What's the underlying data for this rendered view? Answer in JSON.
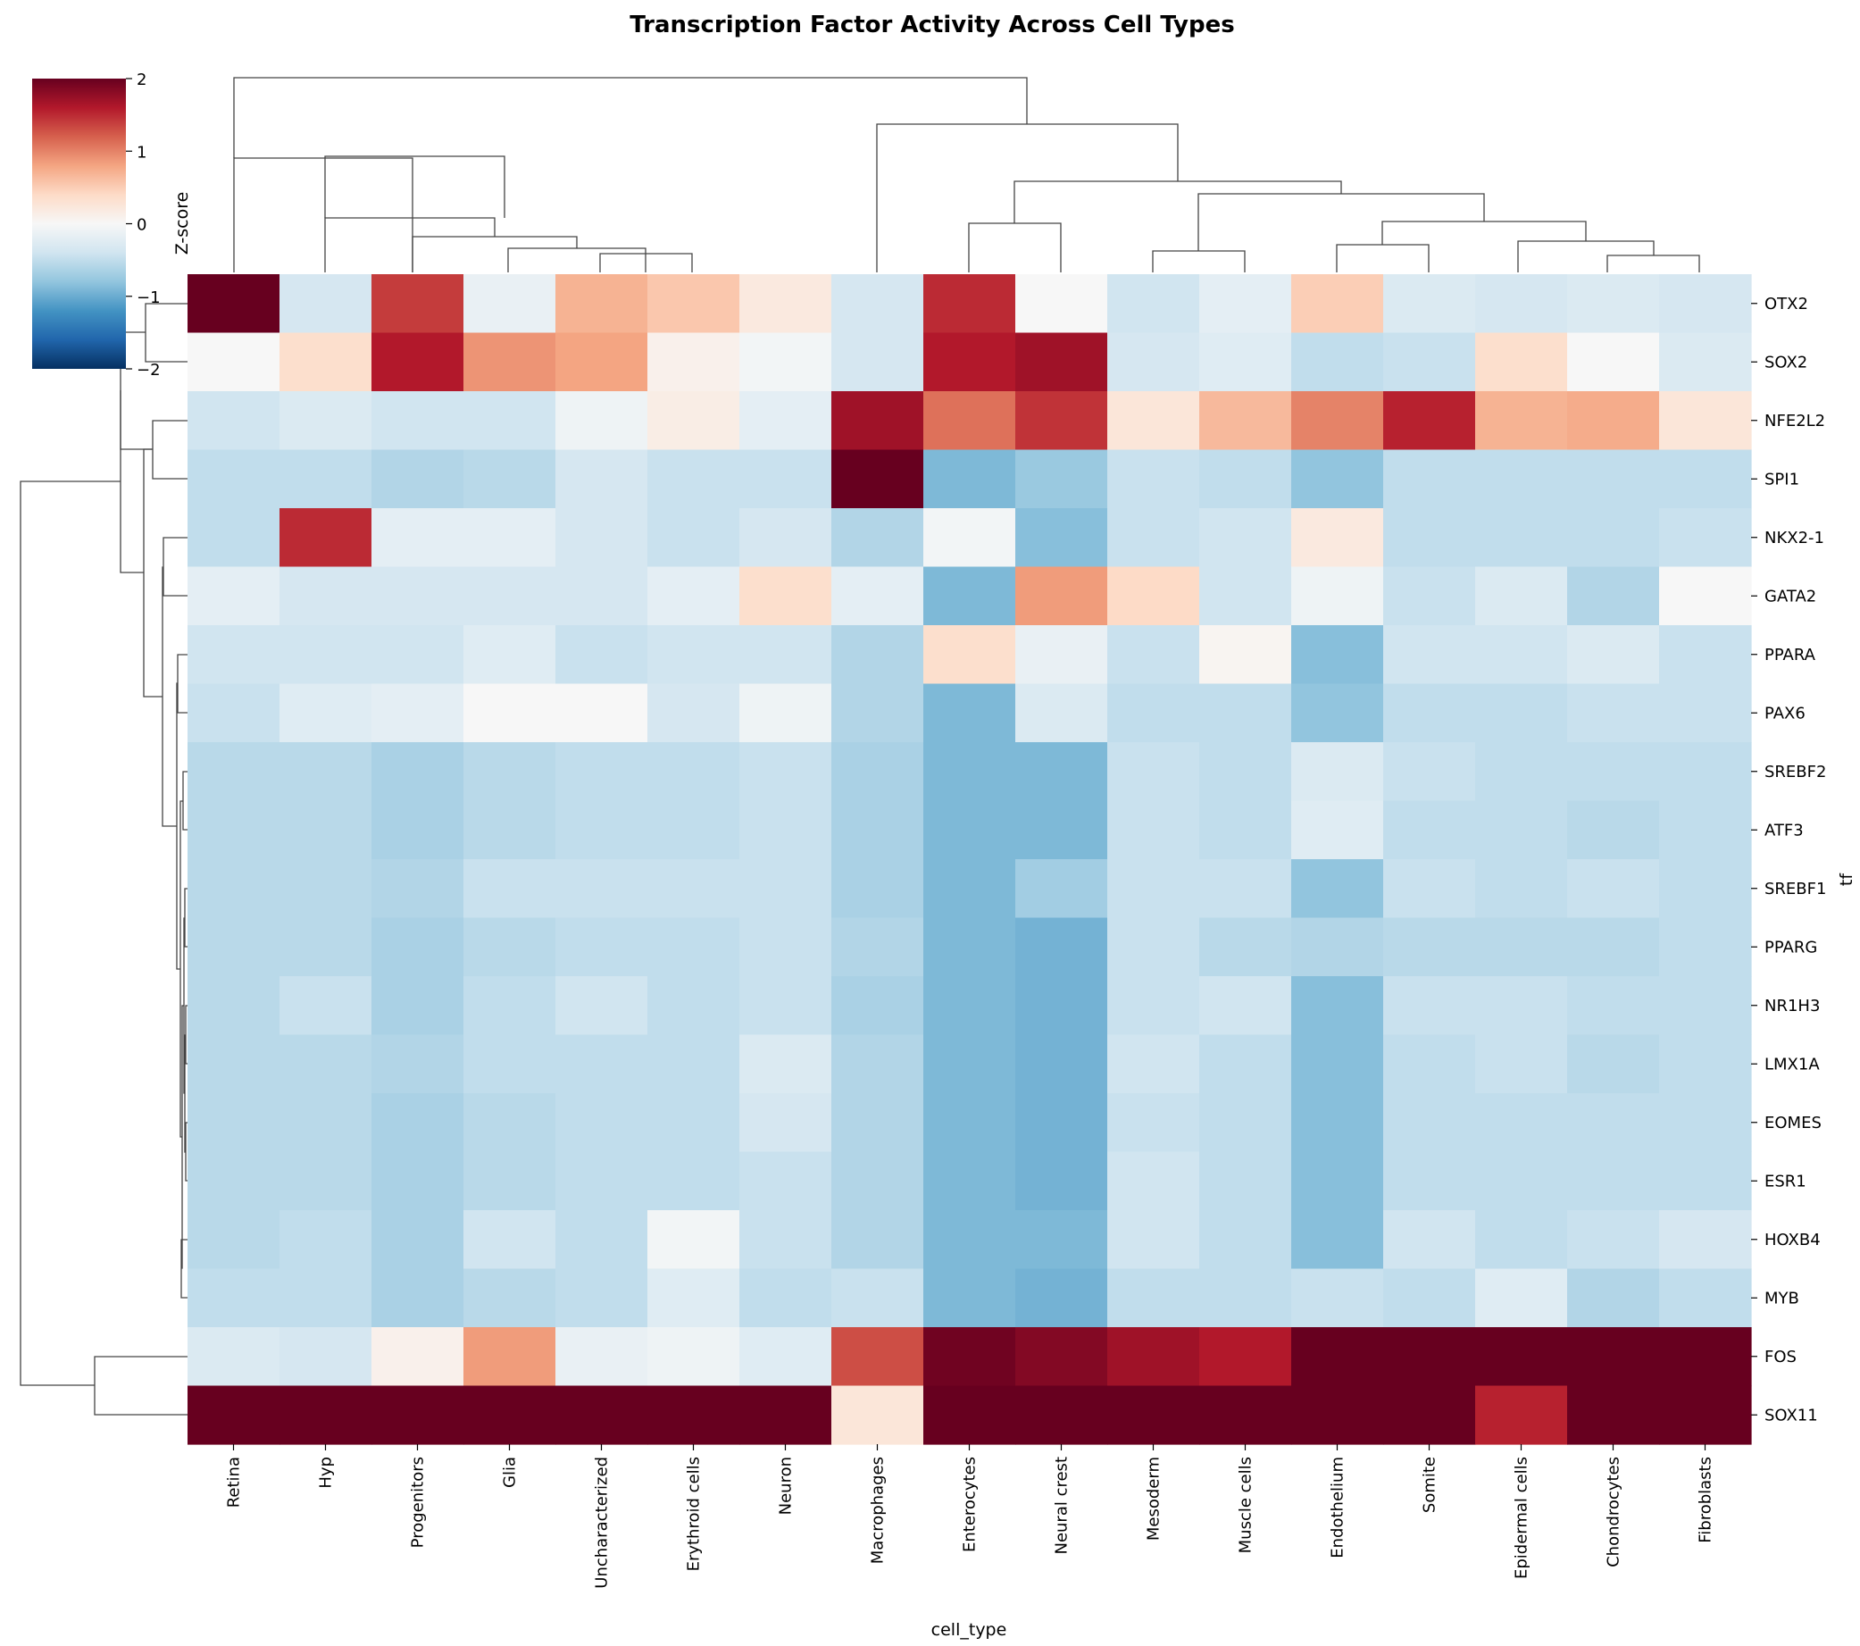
{
  "chart_data": {
    "type": "heatmap",
    "title": "Transcription Factor Activity Across Cell Types",
    "xlabel": "cell_type",
    "ylabel": "tf",
    "colorbar_label": "Z-score",
    "colorbar_ticks": [
      2,
      1,
      0,
      -1,
      -2
    ],
    "vmin": -2,
    "vmax": 2,
    "colormap": "RdBu_r",
    "columns": [
      "Retina",
      "Hyp",
      "Progenitors",
      "Glia",
      "Uncharacterized",
      "Erythroid cells",
      "Neuron",
      "Macrophages",
      "Enterocytes",
      "Neural crest",
      "Mesoderm",
      "Muscle cells",
      "Endothelium",
      "Somite",
      "Epidermal cells",
      "Chondrocytes",
      "Fibroblasts"
    ],
    "rows": [
      "OTX2",
      "SOX2",
      "NFE2L2",
      "SPI1",
      "NKX2-1",
      "GATA2",
      "PPARA",
      "PAX6",
      "SREBF2",
      "ATF3",
      "SREBF1",
      "PPARG",
      "NR1H3",
      "LMX1A",
      "EOMES",
      "ESR1",
      "HOXB4",
      "MYB",
      "FOS",
      "SOX11"
    ],
    "values": [
      [
        2.0,
        -0.35,
        1.4,
        -0.15,
        0.7,
        0.55,
        0.2,
        -0.35,
        1.5,
        0.0,
        -0.4,
        -0.2,
        0.5,
        -0.3,
        -0.35,
        -0.3,
        -0.35
      ],
      [
        0.0,
        0.35,
        1.6,
        0.9,
        0.8,
        0.1,
        -0.05,
        -0.35,
        1.6,
        1.7,
        -0.35,
        -0.25,
        -0.5,
        -0.45,
        0.35,
        0.0,
        -0.3
      ],
      [
        -0.4,
        -0.3,
        -0.4,
        -0.4,
        -0.1,
        0.15,
        -0.2,
        1.7,
        1.1,
        1.45,
        0.25,
        0.65,
        1.0,
        1.55,
        0.7,
        0.75,
        0.25
      ],
      [
        -0.5,
        -0.5,
        -0.6,
        -0.55,
        -0.35,
        -0.45,
        -0.45,
        2.0,
        -0.9,
        -0.75,
        -0.45,
        -0.5,
        -0.8,
        -0.5,
        -0.5,
        -0.5,
        -0.5
      ],
      [
        -0.5,
        1.5,
        -0.2,
        -0.2,
        -0.35,
        -0.45,
        -0.35,
        -0.6,
        -0.05,
        -0.85,
        -0.45,
        -0.4,
        0.2,
        -0.5,
        -0.5,
        -0.5,
        -0.45
      ],
      [
        -0.2,
        -0.35,
        -0.35,
        -0.35,
        -0.35,
        -0.2,
        0.35,
        -0.2,
        -0.9,
        0.85,
        0.4,
        -0.4,
        -0.1,
        -0.45,
        -0.3,
        -0.6,
        0.0
      ],
      [
        -0.4,
        -0.4,
        -0.4,
        -0.25,
        -0.45,
        -0.4,
        -0.4,
        -0.6,
        0.35,
        -0.15,
        -0.45,
        0.05,
        -0.85,
        -0.4,
        -0.4,
        -0.3,
        -0.45
      ],
      [
        -0.45,
        -0.25,
        -0.2,
        0.0,
        0.0,
        -0.35,
        -0.1,
        -0.6,
        -0.9,
        -0.3,
        -0.5,
        -0.5,
        -0.8,
        -0.5,
        -0.5,
        -0.45,
        -0.45
      ],
      [
        -0.55,
        -0.55,
        -0.65,
        -0.55,
        -0.5,
        -0.5,
        -0.45,
        -0.65,
        -0.9,
        -0.9,
        -0.45,
        -0.5,
        -0.3,
        -0.45,
        -0.5,
        -0.5,
        -0.5
      ],
      [
        -0.55,
        -0.55,
        -0.65,
        -0.55,
        -0.5,
        -0.5,
        -0.45,
        -0.65,
        -0.9,
        -0.9,
        -0.45,
        -0.5,
        -0.25,
        -0.5,
        -0.5,
        -0.55,
        -0.5
      ],
      [
        -0.55,
        -0.55,
        -0.6,
        -0.45,
        -0.45,
        -0.45,
        -0.45,
        -0.65,
        -0.9,
        -0.7,
        -0.45,
        -0.45,
        -0.8,
        -0.45,
        -0.5,
        -0.45,
        -0.5
      ],
      [
        -0.55,
        -0.55,
        -0.65,
        -0.55,
        -0.5,
        -0.5,
        -0.45,
        -0.6,
        -0.9,
        -0.95,
        -0.45,
        -0.55,
        -0.6,
        -0.55,
        -0.55,
        -0.55,
        -0.5
      ],
      [
        -0.55,
        -0.45,
        -0.65,
        -0.5,
        -0.4,
        -0.5,
        -0.45,
        -0.65,
        -0.9,
        -0.95,
        -0.45,
        -0.4,
        -0.85,
        -0.45,
        -0.45,
        -0.5,
        -0.5
      ],
      [
        -0.55,
        -0.55,
        -0.6,
        -0.5,
        -0.5,
        -0.5,
        -0.3,
        -0.6,
        -0.9,
        -0.95,
        -0.4,
        -0.5,
        -0.85,
        -0.5,
        -0.45,
        -0.55,
        -0.5
      ],
      [
        -0.55,
        -0.55,
        -0.65,
        -0.55,
        -0.5,
        -0.5,
        -0.35,
        -0.6,
        -0.9,
        -0.95,
        -0.45,
        -0.5,
        -0.85,
        -0.5,
        -0.5,
        -0.5,
        -0.5
      ],
      [
        -0.55,
        -0.55,
        -0.65,
        -0.55,
        -0.5,
        -0.5,
        -0.45,
        -0.6,
        -0.9,
        -0.95,
        -0.4,
        -0.5,
        -0.85,
        -0.5,
        -0.5,
        -0.5,
        -0.5
      ],
      [
        -0.55,
        -0.5,
        -0.65,
        -0.4,
        -0.5,
        -0.05,
        -0.45,
        -0.6,
        -0.9,
        -0.9,
        -0.4,
        -0.5,
        -0.85,
        -0.4,
        -0.5,
        -0.45,
        -0.35
      ],
      [
        -0.5,
        -0.5,
        -0.65,
        -0.55,
        -0.5,
        -0.25,
        -0.5,
        -0.45,
        -0.9,
        -0.95,
        -0.5,
        -0.5,
        -0.45,
        -0.5,
        -0.25,
        -0.6,
        -0.5
      ],
      [
        -0.3,
        -0.35,
        0.1,
        0.85,
        -0.15,
        -0.1,
        -0.25,
        1.3,
        1.95,
        1.85,
        1.7,
        1.6,
        2.0,
        2.0,
        2.0,
        2.0,
        2.0
      ],
      [
        2.0,
        2.0,
        2.0,
        2.0,
        2.0,
        2.0,
        2.0,
        0.25,
        2.0,
        2.0,
        2.0,
        2.0,
        2.0,
        2.0,
        1.55,
        2.0,
        2.0
      ]
    ]
  }
}
